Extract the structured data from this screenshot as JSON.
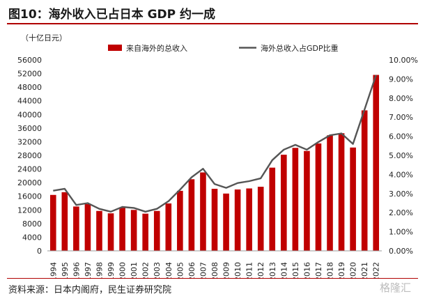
{
  "header": {
    "title": "图10：海外收入已占日本 GDP 约一成"
  },
  "footer": {
    "source": "资料来源：日本内阁府，民生证券研究院",
    "watermark": "格隆汇"
  },
  "chart_data": {
    "type": "bar",
    "unit_label": "（十亿日元）",
    "categories": [
      "1994",
      "1995",
      "1996",
      "1997",
      "1998",
      "1999",
      "2000",
      "2001",
      "2002",
      "2003",
      "2004",
      "2005",
      "2006",
      "2007",
      "2008",
      "2009",
      "2010",
      "2011",
      "2012",
      "2013",
      "2014",
      "2015",
      "2016",
      "2017",
      "2018",
      "2019",
      "2020",
      "2021",
      "2022"
    ],
    "series": [
      {
        "name": "来自海外的总收入",
        "type": "bar",
        "axis": "left",
        "color": "#c00000",
        "values": [
          16400,
          17200,
          13000,
          13700,
          11700,
          11000,
          12600,
          12000,
          10900,
          11700,
          13900,
          17600,
          21000,
          23000,
          18200,
          16800,
          18000,
          18300,
          18800,
          24400,
          28200,
          30200,
          29300,
          31500,
          33900,
          34500,
          30300,
          41200,
          51600
        ]
      },
      {
        "name": "海外总收入占GDP比重",
        "type": "line",
        "axis": "right",
        "color": "#555555",
        "values": [
          3.15,
          3.25,
          2.4,
          2.5,
          2.2,
          2.05,
          2.3,
          2.25,
          2.05,
          2.2,
          2.6,
          3.2,
          3.85,
          4.3,
          3.5,
          3.3,
          3.55,
          3.65,
          3.8,
          4.75,
          5.3,
          5.55,
          5.3,
          5.7,
          6.05,
          6.15,
          5.6,
          7.4,
          9.2
        ]
      }
    ],
    "y_left": {
      "min": 0,
      "max": 56000,
      "step": 4000
    },
    "y_right": {
      "min": 0,
      "max": 10,
      "step": 1,
      "format": "percent_2dp"
    },
    "grid": false,
    "legend_position": "top"
  }
}
